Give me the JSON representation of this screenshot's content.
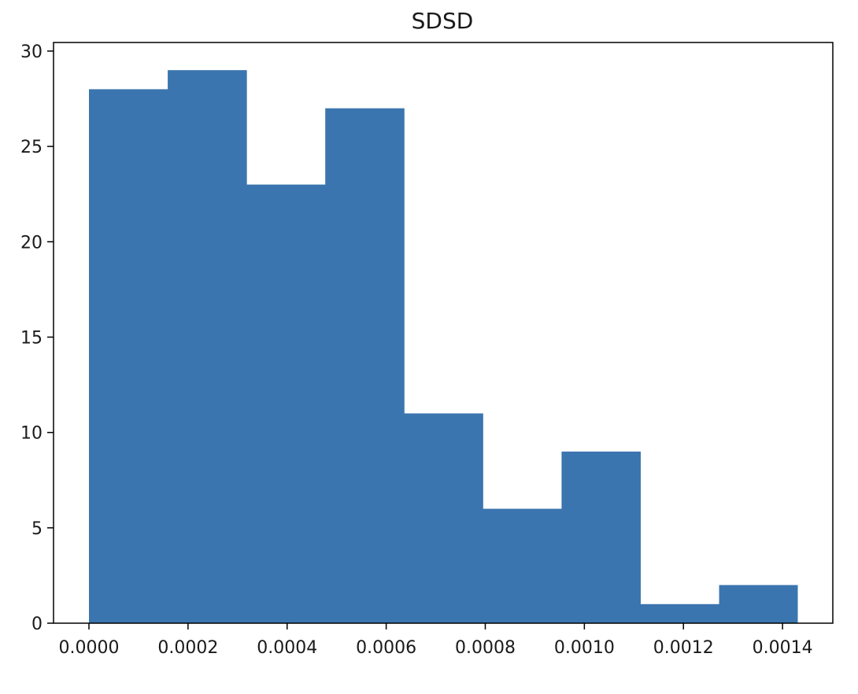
{
  "chart_data": {
    "type": "bar",
    "subtype": "histogram",
    "title": "SDSD",
    "xlabel": "",
    "ylabel": "",
    "bins": [
      {
        "start": 0.0,
        "end": 0.000159,
        "count": 28
      },
      {
        "start": 0.000159,
        "end": 0.000318,
        "count": 29
      },
      {
        "start": 0.000318,
        "end": 0.000477,
        "count": 23
      },
      {
        "start": 0.000477,
        "end": 0.000636,
        "count": 27
      },
      {
        "start": 0.000636,
        "end": 0.000795,
        "count": 11
      },
      {
        "start": 0.000795,
        "end": 0.000954,
        "count": 6
      },
      {
        "start": 0.000954,
        "end": 0.001113,
        "count": 9
      },
      {
        "start": 0.001113,
        "end": 0.001272,
        "count": 1
      },
      {
        "start": 0.001272,
        "end": 0.00143,
        "count": 2
      }
    ],
    "xlim": [
      -7.15e-05,
      0.0015015
    ],
    "ylim": [
      0,
      30.45
    ],
    "xticks": [
      {
        "value": 0.0,
        "label": "0.0000"
      },
      {
        "value": 0.0002,
        "label": "0.0002"
      },
      {
        "value": 0.0004,
        "label": "0.0004"
      },
      {
        "value": 0.0006,
        "label": "0.0006"
      },
      {
        "value": 0.0008,
        "label": "0.0008"
      },
      {
        "value": 0.001,
        "label": "0.0010"
      },
      {
        "value": 0.0012,
        "label": "0.0012"
      },
      {
        "value": 0.0014,
        "label": "0.0014"
      }
    ],
    "yticks": [
      {
        "value": 0,
        "label": "0"
      },
      {
        "value": 5,
        "label": "5"
      },
      {
        "value": 10,
        "label": "10"
      },
      {
        "value": 15,
        "label": "15"
      },
      {
        "value": 20,
        "label": "20"
      },
      {
        "value": 25,
        "label": "25"
      },
      {
        "value": 30,
        "label": "30"
      }
    ],
    "bar_color": "#3b75af",
    "grid": false,
    "legend": "none"
  }
}
